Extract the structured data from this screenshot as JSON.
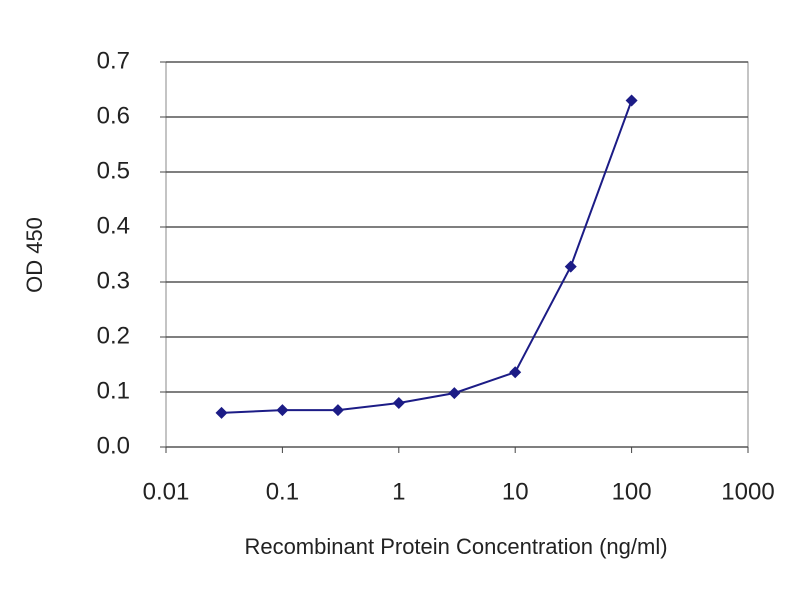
{
  "chart_data": {
    "type": "line",
    "x_label": "Recombinant Protein Concentration (ng/ml)",
    "y_label": "OD 450",
    "x_scale": "log",
    "x": [
      0.03,
      0.1,
      0.3,
      1,
      3,
      10,
      30,
      100
    ],
    "series": [
      {
        "color": "#1c1c86",
        "values": [
          0.062,
          0.067,
          0.067,
          0.08,
          0.098,
          0.136,
          0.328,
          0.63
        ]
      }
    ],
    "xlim": [
      0.01,
      1000
    ],
    "xticks": [
      0.01,
      0.1,
      1,
      10,
      100,
      1000
    ],
    "ylim": [
      0,
      0.7
    ],
    "yticks": [
      {
        "value": 0,
        "label": "0.0"
      },
      0.1,
      0.2,
      0.3,
      0.4,
      0.5,
      0.6,
      0.7
    ],
    "grid": true
  }
}
